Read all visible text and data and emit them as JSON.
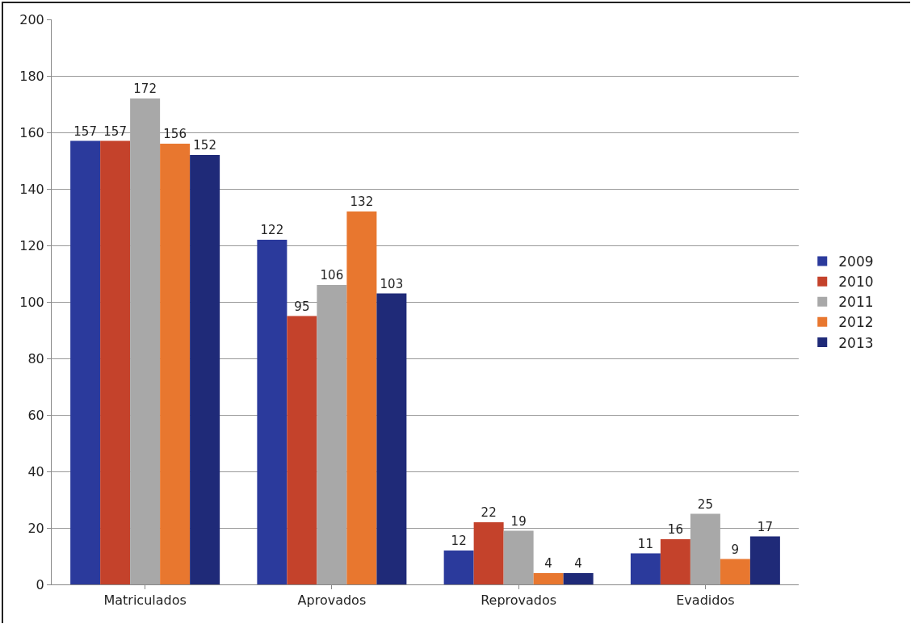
{
  "chart_data": {
    "type": "bar",
    "categories": [
      "Matriculados",
      "Aprovados",
      "Reprovados",
      "Evadidos"
    ],
    "series": [
      {
        "name": "2009",
        "color": "#2b3a9c",
        "values": [
          157,
          122,
          12,
          11
        ]
      },
      {
        "name": "2010",
        "color": "#c4422b",
        "values": [
          157,
          95,
          22,
          16
        ]
      },
      {
        "name": "2011",
        "color": "#a8a8a8",
        "values": [
          172,
          106,
          19,
          25
        ]
      },
      {
        "name": "2012",
        "color": "#e8772f",
        "values": [
          156,
          132,
          4,
          9
        ]
      },
      {
        "name": "2013",
        "color": "#1f2a78",
        "values": [
          152,
          103,
          4,
          17
        ]
      }
    ],
    "ylim": [
      0,
      200
    ],
    "yticks": [
      0,
      20,
      40,
      60,
      80,
      100,
      120,
      140,
      160,
      180,
      200
    ],
    "grid": "y",
    "legend": "right",
    "data_labels": true
  }
}
